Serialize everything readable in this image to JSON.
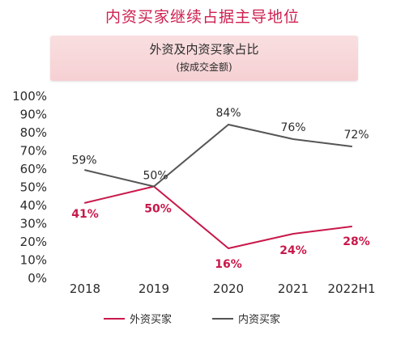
{
  "page_title": "内资买家继续占据主导地位",
  "chart_data": {
    "type": "line",
    "title": "外资及内资买家占比",
    "subtitle": "(按成交金额)",
    "categories": [
      "2018",
      "2019",
      "2020",
      "2021",
      "2022H1"
    ],
    "ylim": [
      0,
      100
    ],
    "yticks": [
      "0%",
      "10%",
      "20%",
      "30%",
      "40%",
      "50%",
      "60%",
      "70%",
      "80%",
      "90%",
      "100%"
    ],
    "grid": false,
    "legend_position": "bottom",
    "series": [
      {
        "name": "外资买家",
        "values": [
          41,
          50,
          16,
          24,
          28
        ],
        "labels": [
          "41%",
          "50%",
          "16%",
          "24%",
          "28%"
        ],
        "color": "#c8184a"
      },
      {
        "name": "内资买家",
        "values": [
          59,
          50,
          84,
          76,
          72
        ],
        "labels": [
          "59%",
          "50%",
          "84%",
          "76%",
          "72%"
        ],
        "color": "#555555"
      }
    ]
  }
}
